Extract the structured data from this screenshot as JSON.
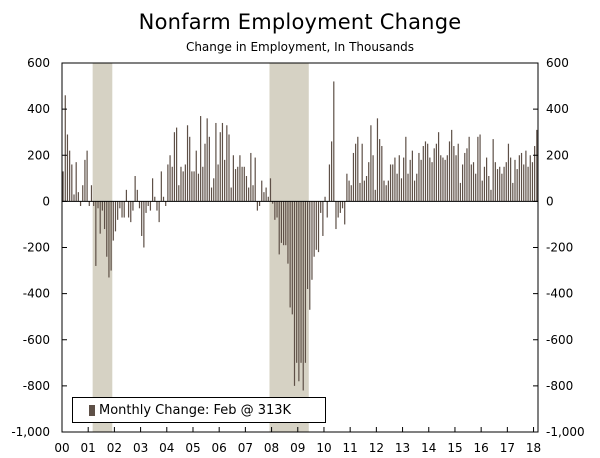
{
  "chart_data": {
    "type": "bar",
    "title": "Nonfarm Employment Change",
    "subtitle": "Change in Employment, In Thousands",
    "ylim": [
      -1000,
      600
    ],
    "yticks": [
      600,
      400,
      200,
      0,
      -200,
      -400,
      -600,
      -800,
      -1000
    ],
    "ytick_labels_left": [
      "600",
      "400",
      "200",
      "0",
      "-200",
      "-400",
      "-600",
      "-800",
      "-1,000"
    ],
    "ytick_labels_right": [
      "600",
      "400",
      "200",
      "0",
      "-200",
      "-400",
      "-600",
      "-800",
      "-1,000"
    ],
    "xtick_labels": [
      "00",
      "01",
      "02",
      "03",
      "04",
      "05",
      "06",
      "07",
      "08",
      "09",
      "10",
      "11",
      "12",
      "13",
      "14",
      "15",
      "16",
      "17",
      "18"
    ],
    "x_start": 2000.0,
    "x_end": 2018.17,
    "recessions": [
      [
        2001.17,
        2001.92
      ],
      [
        2007.92,
        2009.42
      ]
    ],
    "series": [
      {
        "name": "Monthly Change",
        "color": "#5e5047",
        "values": [
          130,
          460,
          290,
          220,
          160,
          30,
          170,
          40,
          -20,
          70,
          180,
          220,
          -20,
          70,
          -20,
          -280,
          -30,
          -140,
          -40,
          -120,
          -240,
          -330,
          -300,
          -170,
          -130,
          -80,
          -30,
          -70,
          -70,
          50,
          -70,
          -90,
          -40,
          110,
          50,
          -30,
          -150,
          -200,
          -50,
          -20,
          -40,
          100,
          20,
          -40,
          -90,
          130,
          20,
          -20,
          160,
          200,
          150,
          300,
          320,
          70,
          150,
          130,
          160,
          330,
          280,
          130,
          130,
          220,
          120,
          370,
          150,
          250,
          360,
          280,
          60,
          100,
          340,
          160,
          300,
          340,
          180,
          330,
          290,
          60,
          200,
          140,
          150,
          200,
          150,
          150,
          110,
          60,
          210,
          70,
          190,
          -40,
          -20,
          90,
          40,
          60,
          20,
          100,
          -10,
          -80,
          -70,
          -230,
          -180,
          -190,
          -190,
          -270,
          -460,
          -490,
          -800,
          -700,
          -780,
          -700,
          -820,
          -700,
          -380,
          -470,
          -340,
          -240,
          -210,
          -220,
          -50,
          -150,
          20,
          -70,
          160,
          260,
          520,
          -120,
          -70,
          -50,
          -30,
          -100,
          120,
          90,
          70,
          210,
          250,
          280,
          80,
          250,
          90,
          110,
          170,
          330,
          200,
          50,
          360,
          270,
          240,
          90,
          70,
          90,
          160,
          160,
          190,
          120,
          200,
          100,
          190,
          280,
          120,
          180,
          220,
          90,
          120,
          210,
          180,
          240,
          260,
          250,
          190,
          170,
          230,
          250,
          300,
          200,
          190,
          180,
          200,
          260,
          310,
          240,
          200,
          250,
          80,
          160,
          210,
          230,
          280,
          160,
          170,
          120,
          280,
          290,
          90,
          150,
          190,
          110,
          50,
          270,
          170,
          140,
          150,
          120,
          150,
          170,
          250,
          190,
          80,
          180,
          140,
          200,
          210,
          160,
          220,
          150,
          200,
          170,
          240,
          310
        ]
      }
    ],
    "legend": "Monthly Change: Feb @ 313K"
  }
}
